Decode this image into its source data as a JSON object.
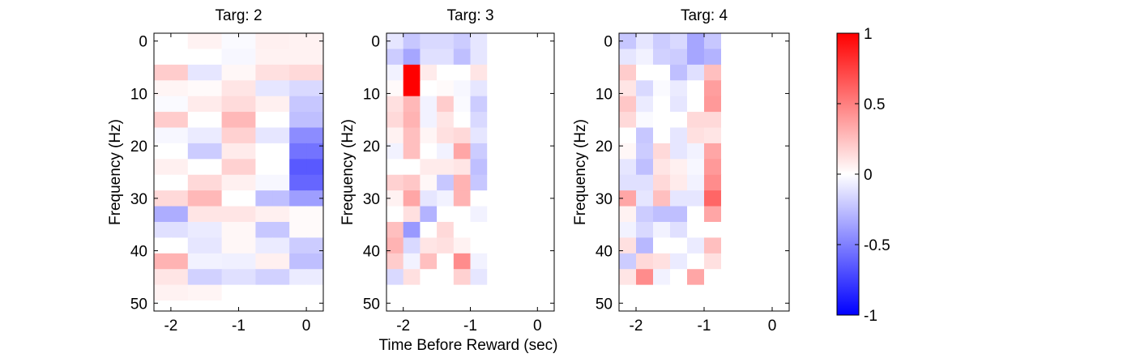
{
  "chart_data": [
    {
      "type": "heatmap",
      "title": "Targ: 2",
      "ylabel": "Frequency (Hz)",
      "xticks": [
        -2,
        -1,
        0
      ],
      "yticks": [
        0,
        10,
        20,
        30,
        40,
        50
      ],
      "xlim": [
        -2.25,
        0.25
      ],
      "ylim": [
        -1.5,
        51.5
      ],
      "x": [
        -2.125,
        -1.875,
        -1.625,
        -1.375,
        -1.125,
        -0.875,
        -0.625,
        -0.375,
        -0.125,
        0.125
      ],
      "y": [
        0,
        3,
        6,
        9,
        12,
        15,
        18,
        21,
        24,
        27,
        30,
        33,
        36,
        39,
        42,
        45,
        48,
        51
      ],
      "z": [
        [
          0.0,
          0.0,
          0.05,
          0.05,
          -0.02,
          -0.02,
          0.06,
          0.06,
          0.05,
          0.05
        ],
        [
          0.0,
          0.0,
          0.0,
          0.0,
          -0.03,
          -0.03,
          0.05,
          0.05,
          0.05,
          0.05
        ],
        [
          0.2,
          0.2,
          -0.1,
          -0.1,
          0.03,
          0.03,
          0.12,
          0.12,
          0.15,
          0.15
        ],
        [
          0.04,
          0.04,
          0.02,
          0.02,
          0.1,
          0.1,
          -0.1,
          -0.1,
          -0.15,
          -0.15
        ],
        [
          -0.02,
          -0.02,
          0.08,
          0.08,
          0.14,
          0.14,
          0.06,
          0.06,
          -0.22,
          -0.22
        ],
        [
          0.2,
          0.2,
          0.0,
          0.0,
          0.28,
          0.28,
          0.0,
          0.0,
          -0.25,
          -0.25
        ],
        [
          -0.03,
          -0.03,
          -0.08,
          -0.08,
          0.18,
          0.18,
          -0.1,
          -0.1,
          -0.45,
          -0.45
        ],
        [
          0.0,
          0.0,
          -0.2,
          -0.2,
          0.08,
          0.08,
          0.0,
          0.0,
          -0.55,
          -0.55
        ],
        [
          0.06,
          0.06,
          0.0,
          0.0,
          0.18,
          0.18,
          0.0,
          0.0,
          -0.65,
          -0.65
        ],
        [
          0.0,
          0.0,
          0.15,
          0.15,
          0.06,
          0.06,
          -0.03,
          -0.03,
          -0.6,
          -0.6
        ],
        [
          0.15,
          0.15,
          0.28,
          0.28,
          0.0,
          0.0,
          -0.25,
          -0.25,
          -0.38,
          -0.38
        ],
        [
          -0.32,
          -0.32,
          0.1,
          0.1,
          0.1,
          0.1,
          0.06,
          0.06,
          0.02,
          0.02
        ],
        [
          -0.12,
          -0.12,
          -0.08,
          -0.08,
          0.03,
          0.03,
          -0.22,
          -0.22,
          0.02,
          0.02
        ],
        [
          0.0,
          0.0,
          -0.1,
          -0.1,
          0.03,
          0.03,
          -0.08,
          -0.08,
          -0.2,
          -0.2
        ],
        [
          0.3,
          0.3,
          -0.05,
          -0.05,
          -0.06,
          -0.06,
          0.06,
          0.06,
          -0.25,
          -0.25
        ],
        [
          0.1,
          0.1,
          -0.18,
          -0.18,
          -0.12,
          -0.12,
          -0.18,
          -0.18,
          -0.08,
          -0.08
        ],
        [
          0.05,
          0.05,
          0.04,
          0.04,
          0.0,
          0.0,
          0.0,
          0.0,
          0.0,
          0.0
        ],
        [
          0.0,
          0.0,
          0.0,
          0.0,
          0.0,
          0.0,
          0.0,
          0.0,
          0.0,
          0.0
        ]
      ]
    },
    {
      "type": "heatmap",
      "title": "Targ: 3",
      "xlabel": "Time Before Reward (sec)",
      "ylabel": "Frequency (Hz)",
      "xticks": [
        -2,
        -1,
        0
      ],
      "yticks": [
        0,
        10,
        20,
        30,
        40,
        50
      ],
      "xlim": [
        -2.25,
        0.25
      ],
      "ylim": [
        -1.5,
        51.5
      ],
      "x": [
        -2.125,
        -1.875,
        -1.625,
        -1.375,
        -1.125,
        -0.875,
        -0.625,
        -0.375,
        -0.125,
        0.125
      ],
      "y": [
        0,
        3,
        6,
        9,
        12,
        15,
        18,
        21,
        24,
        27,
        30,
        33,
        36,
        39,
        42,
        45,
        48,
        51
      ],
      "z": [
        [
          -0.1,
          -0.22,
          -0.15,
          -0.15,
          -0.2,
          -0.1,
          0.0,
          0.0,
          0.0,
          0.0
        ],
        [
          -0.2,
          -0.35,
          -0.12,
          -0.12,
          -0.25,
          -0.1,
          0.0,
          0.0,
          0.0,
          0.0
        ],
        [
          -0.05,
          1.0,
          0.08,
          0.0,
          0.0,
          0.1,
          0.0,
          0.0,
          0.0,
          0.0
        ],
        [
          0.02,
          1.0,
          0.0,
          0.02,
          -0.03,
          -0.1,
          0.0,
          0.0,
          0.0,
          0.0
        ],
        [
          0.12,
          0.28,
          -0.05,
          0.2,
          -0.02,
          -0.2,
          0.0,
          0.0,
          0.0,
          0.0
        ],
        [
          0.15,
          0.3,
          -0.05,
          0.1,
          0.0,
          -0.15,
          0.0,
          0.0,
          0.0,
          0.0
        ],
        [
          0.05,
          0.25,
          0.04,
          0.12,
          0.15,
          -0.1,
          0.0,
          0.0,
          0.0,
          0.0
        ],
        [
          -0.05,
          0.25,
          0.0,
          -0.05,
          0.35,
          -0.2,
          0.0,
          0.0,
          0.0,
          0.0
        ],
        [
          0.0,
          0.0,
          0.08,
          0.08,
          0.1,
          -0.25,
          0.0,
          0.0,
          0.0,
          0.0
        ],
        [
          0.18,
          0.22,
          0.03,
          -0.22,
          0.3,
          -0.22,
          0.0,
          0.0,
          0.0,
          0.0
        ],
        [
          0.05,
          0.35,
          -0.1,
          -0.05,
          0.3,
          0.0,
          0.0,
          0.0,
          0.0,
          0.0
        ],
        [
          0.0,
          0.12,
          -0.3,
          0.0,
          0.0,
          -0.05,
          0.0,
          0.0,
          0.0,
          0.0
        ],
        [
          0.25,
          -0.4,
          0.0,
          0.15,
          0.0,
          0.0,
          0.0,
          0.0,
          0.0,
          0.0
        ],
        [
          0.3,
          -0.15,
          0.1,
          0.12,
          0.05,
          0.0,
          0.0,
          0.0,
          0.0,
          0.0
        ],
        [
          0.2,
          -0.05,
          0.25,
          0.0,
          0.45,
          -0.05,
          0.0,
          0.0,
          0.0,
          0.0
        ],
        [
          -0.15,
          0.12,
          0.0,
          0.0,
          0.18,
          -0.1,
          0.0,
          0.0,
          0.0,
          0.0
        ],
        [
          0.0,
          0.0,
          0.0,
          0.0,
          0.0,
          0.0,
          0.0,
          0.0,
          0.0,
          0.0
        ],
        [
          0.0,
          0.0,
          0.0,
          0.0,
          0.0,
          0.0,
          0.0,
          0.0,
          0.0,
          0.0
        ]
      ]
    },
    {
      "type": "heatmap",
      "title": "Targ: 4",
      "ylabel": "Frequency (Hz)",
      "xticks": [
        -2,
        -1,
        0
      ],
      "yticks": [
        0,
        10,
        20,
        30,
        40,
        50
      ],
      "xlim": [
        -2.25,
        0.25
      ],
      "ylim": [
        -1.5,
        51.5
      ],
      "x": [
        -2.125,
        -1.875,
        -1.625,
        -1.375,
        -1.125,
        -0.875,
        -0.625,
        -0.375,
        -0.125,
        0.125
      ],
      "y": [
        0,
        3,
        6,
        9,
        12,
        15,
        18,
        21,
        24,
        27,
        30,
        33,
        36,
        39,
        42,
        45,
        48,
        51
      ],
      "z": [
        [
          -0.22,
          -0.1,
          -0.2,
          -0.15,
          -0.35,
          -0.22,
          0.0,
          0.0,
          0.0,
          0.0
        ],
        [
          -0.1,
          -0.05,
          -0.18,
          -0.2,
          -0.35,
          -0.3,
          0.0,
          0.0,
          0.0,
          0.0
        ],
        [
          0.2,
          0.0,
          0.0,
          -0.25,
          -0.12,
          0.25,
          0.0,
          0.0,
          0.0,
          0.0
        ],
        [
          0.1,
          -0.15,
          -0.02,
          -0.08,
          0.0,
          0.38,
          0.0,
          0.0,
          0.0,
          0.0
        ],
        [
          0.22,
          -0.08,
          0.0,
          -0.1,
          0.0,
          0.4,
          0.0,
          0.0,
          0.0,
          0.0
        ],
        [
          0.15,
          -0.02,
          0.0,
          0.0,
          0.15,
          0.15,
          0.0,
          0.0,
          0.0,
          0.0
        ],
        [
          0.0,
          -0.22,
          0.0,
          -0.1,
          0.12,
          0.1,
          0.0,
          0.0,
          0.0,
          0.0
        ],
        [
          0.03,
          -0.2,
          0.15,
          -0.1,
          -0.05,
          0.35,
          0.0,
          0.0,
          0.0,
          0.0
        ],
        [
          -0.1,
          -0.25,
          0.1,
          0.06,
          -0.03,
          0.4,
          0.0,
          0.0,
          0.0,
          0.0
        ],
        [
          -0.12,
          -0.12,
          0.15,
          0.08,
          -0.05,
          0.45,
          0.0,
          0.0,
          0.0,
          0.0
        ],
        [
          0.35,
          -0.1,
          0.25,
          -0.1,
          -0.1,
          0.6,
          0.0,
          0.0,
          0.0,
          0.0
        ],
        [
          0.05,
          -0.2,
          -0.25,
          -0.25,
          0.0,
          0.35,
          0.0,
          0.0,
          0.0,
          0.0
        ],
        [
          -0.05,
          -0.15,
          -0.05,
          -0.12,
          0.0,
          0.0,
          0.0,
          0.0,
          0.0,
          0.0
        ],
        [
          0.12,
          -0.28,
          0.0,
          0.0,
          -0.08,
          0.25,
          0.0,
          0.0,
          0.0,
          0.0
        ],
        [
          -0.2,
          0.15,
          0.12,
          -0.08,
          0.0,
          0.12,
          0.0,
          0.0,
          0.0,
          0.0
        ],
        [
          0.1,
          0.45,
          -0.05,
          0.0,
          0.35,
          0.0,
          0.0,
          0.0,
          0.0,
          0.0
        ],
        [
          0.0,
          0.0,
          0.0,
          0.0,
          0.0,
          0.0,
          0.0,
          0.0,
          0.0,
          0.0
        ],
        [
          0.0,
          0.0,
          0.0,
          0.0,
          0.0,
          0.0,
          0.0,
          0.0,
          0.0,
          0.0
        ]
      ]
    }
  ],
  "colorbar": {
    "range": [
      -1,
      1
    ],
    "ticks": [
      -1,
      -0.5,
      0,
      0.5,
      1
    ],
    "tick_labels": [
      "-1",
      "-0.5",
      "0",
      "0.5",
      "1"
    ],
    "colormap": [
      "#0000ff",
      "#ffffff",
      "#ff0000"
    ]
  }
}
